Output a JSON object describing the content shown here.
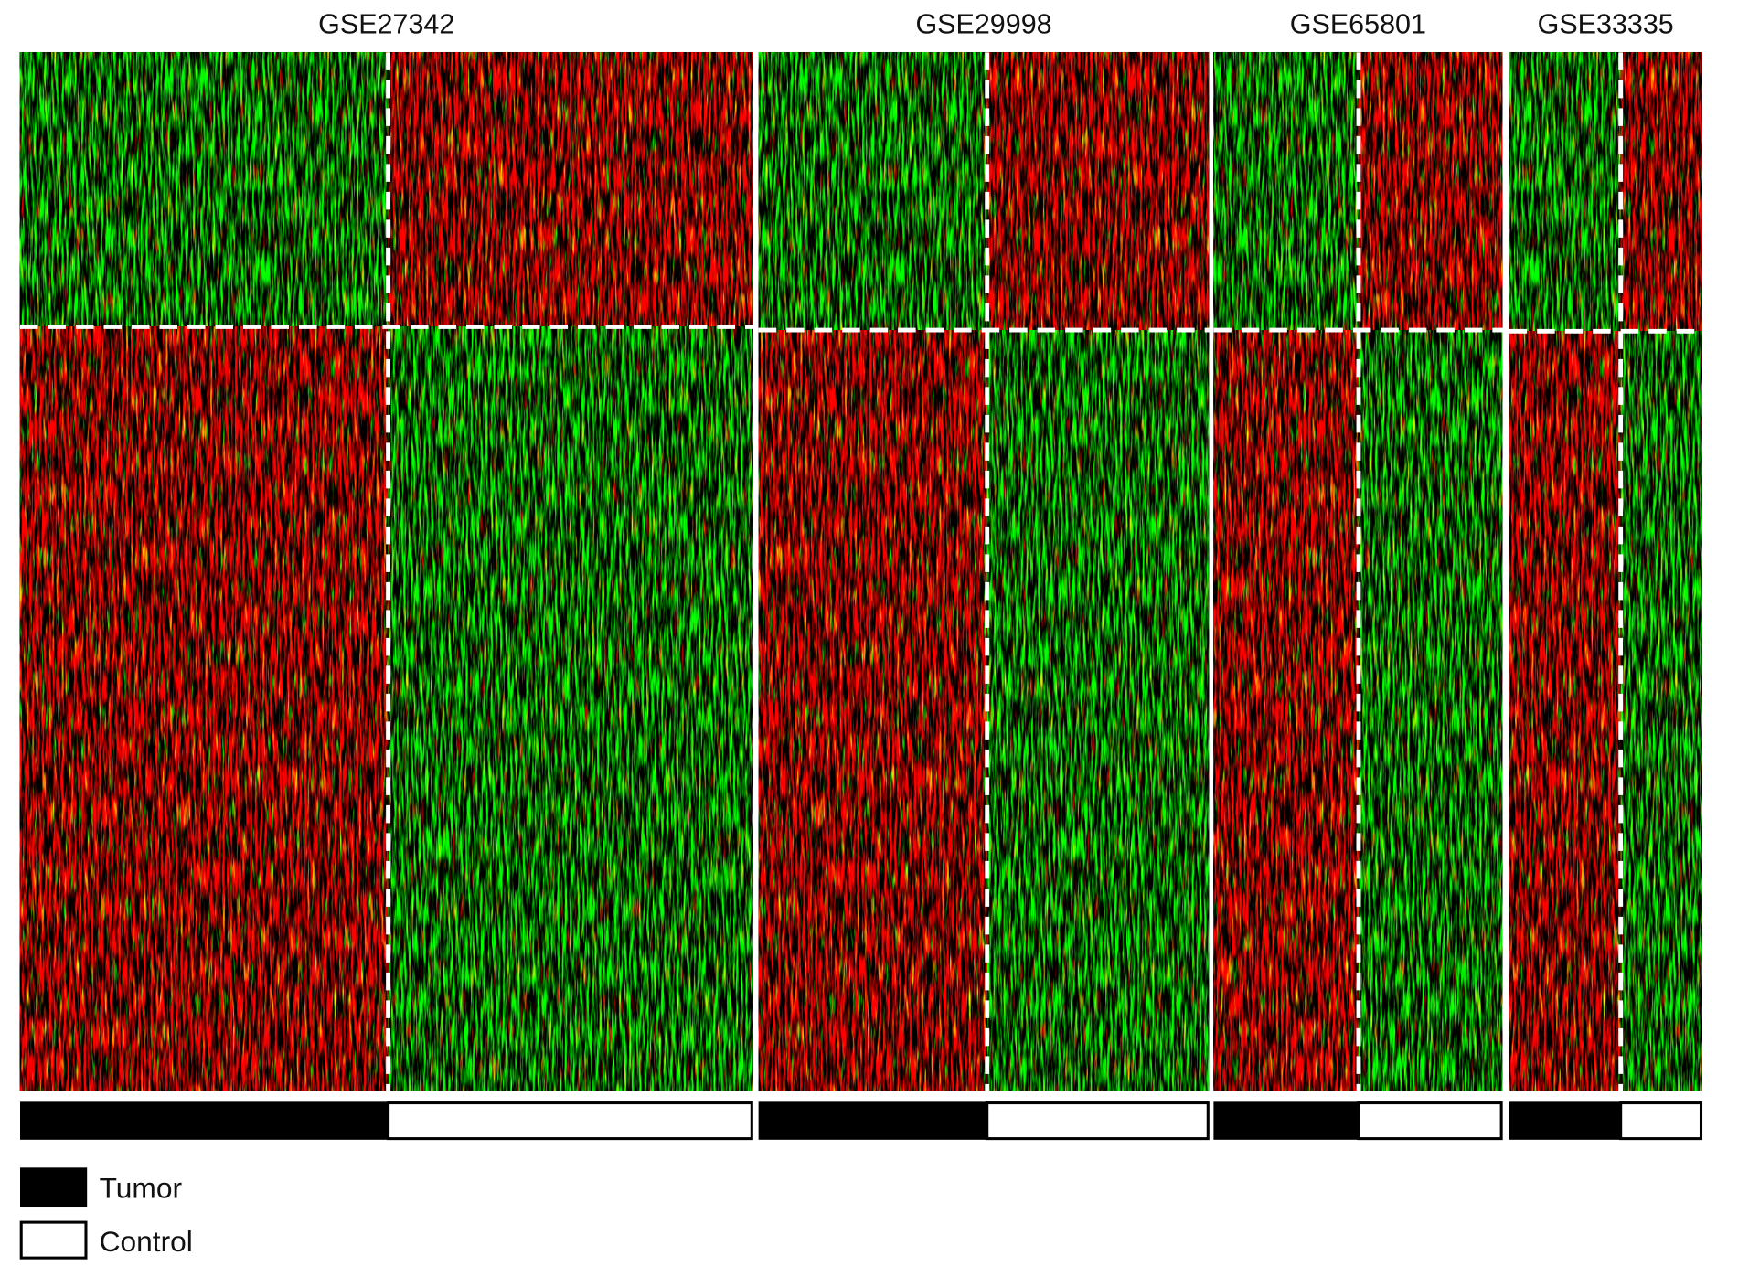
{
  "panels": [
    {
      "title": "GSE27342"
    },
    {
      "title": "GSE29998"
    },
    {
      "title": "GSE65801"
    },
    {
      "title": "GSE33335"
    }
  ],
  "legend": [
    {
      "label": "Tumor"
    },
    {
      "label": "Control"
    }
  ]
}
